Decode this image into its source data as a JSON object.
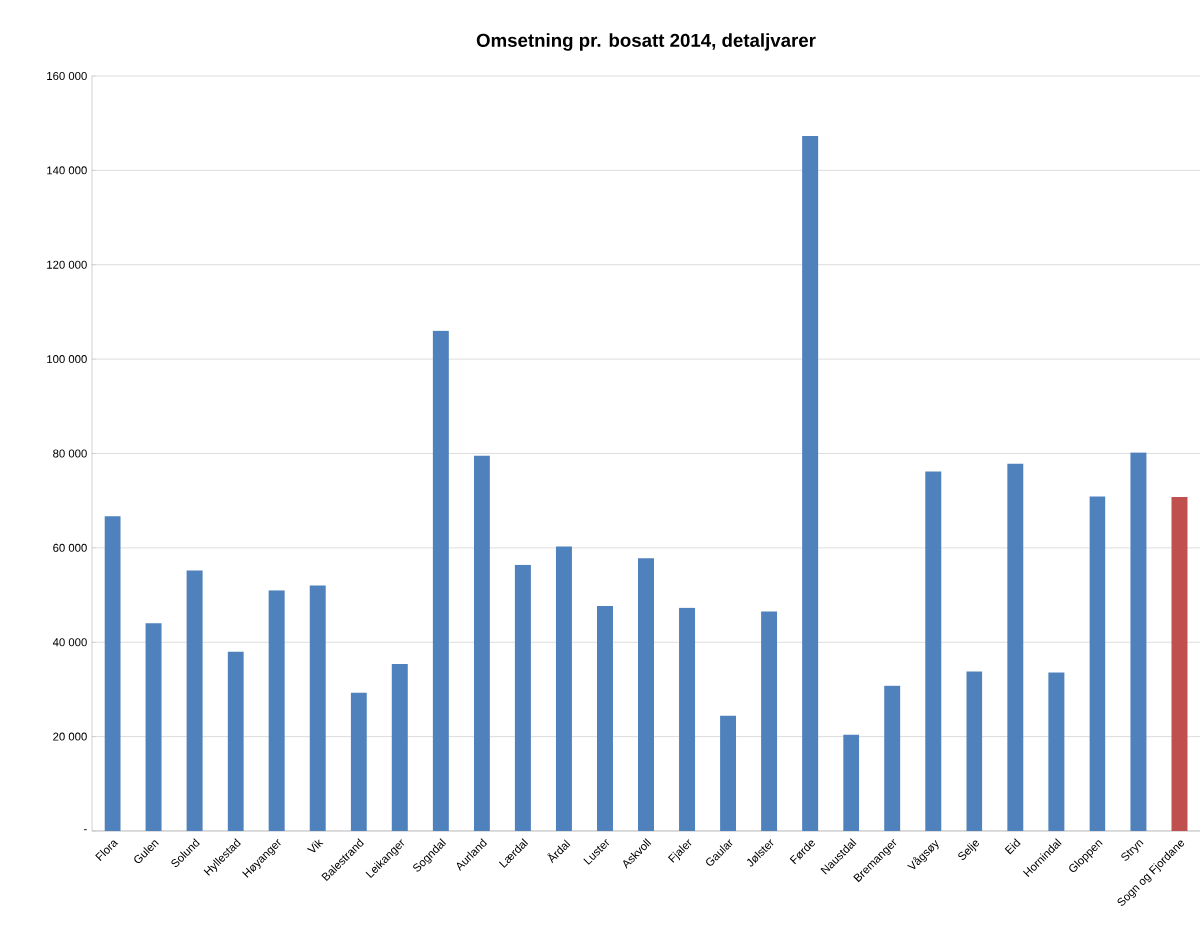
{
  "chart_data": {
    "type": "bar",
    "title": "Omsetning pr. bosatt 2014, detaljvarer",
    "categories": [
      "Flora",
      "Gulen",
      "Solund",
      "Hyllestad",
      "Høyanger",
      "Vik",
      "Balestrand",
      "Leikanger",
      "Sogndal",
      "Aurland",
      "Lærdal",
      "Årdal",
      "Luster",
      "Askvoll",
      "Fjaler",
      "Gaular",
      "Jølster",
      "Førde",
      "Naustdal",
      "Bremanger",
      "Vågsøy",
      "Selje",
      "Eid",
      "Hornindal",
      "Gloppen",
      "Stryn",
      "Sogn og Fjordane"
    ],
    "values": [
      66700,
      44000,
      55200,
      38000,
      51000,
      52000,
      29300,
      35400,
      106000,
      79500,
      56400,
      60300,
      47700,
      57800,
      47300,
      24400,
      46500,
      147300,
      20400,
      30800,
      76200,
      33800,
      77800,
      33600,
      70900,
      80200,
      70800
    ],
    "colors": [
      "#4f81bd",
      "#4f81bd",
      "#4f81bd",
      "#4f81bd",
      "#4f81bd",
      "#4f81bd",
      "#4f81bd",
      "#4f81bd",
      "#4f81bd",
      "#4f81bd",
      "#4f81bd",
      "#4f81bd",
      "#4f81bd",
      "#4f81bd",
      "#4f81bd",
      "#4f81bd",
      "#4f81bd",
      "#4f81bd",
      "#4f81bd",
      "#4f81bd",
      "#4f81bd",
      "#4f81bd",
      "#4f81bd",
      "#4f81bd",
      "#4f81bd",
      "#4f81bd",
      "#c0504d"
    ],
    "ylim": [
      0,
      160000
    ],
    "yticks": [
      {
        "value": 0,
        "label": "-"
      },
      {
        "value": 20000,
        "label": "20 000"
      },
      {
        "value": 40000,
        "label": "40 000"
      },
      {
        "value": 60000,
        "label": "60 000"
      },
      {
        "value": 80000,
        "label": "80 000"
      },
      {
        "value": 100000,
        "label": "100 000"
      },
      {
        "value": 120000,
        "label": "120 000"
      },
      {
        "value": 140000,
        "label": "140 000"
      },
      {
        "value": 160000,
        "label": "160 000"
      }
    ],
    "grid": "y"
  }
}
